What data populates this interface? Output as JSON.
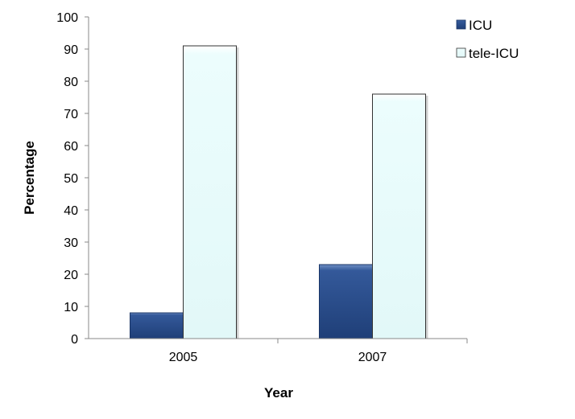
{
  "chart_data": {
    "type": "bar",
    "title": "",
    "xlabel": "Year",
    "ylabel": "Percentage",
    "categories": [
      "2005",
      "2007"
    ],
    "series": [
      {
        "name": "ICU",
        "values": [
          8,
          23
        ],
        "color": "#2b4f8a"
      },
      {
        "name": "tele-ICU",
        "values": [
          91,
          76
        ],
        "color": "#e6fbfb"
      }
    ],
    "ylim": [
      0,
      100
    ],
    "yticks": [
      "0",
      "10",
      "20",
      "30",
      "40",
      "50",
      "60",
      "70",
      "80",
      "90",
      "100"
    ],
    "grid": false,
    "legend": "top-right"
  }
}
